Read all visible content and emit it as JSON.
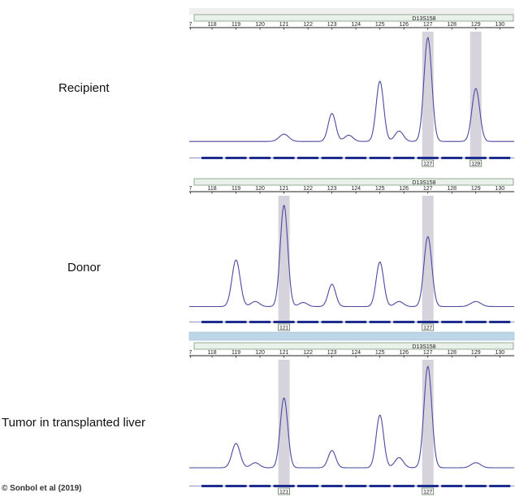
{
  "labels": {
    "recipient": "Recipient",
    "donor": "Donor",
    "tumor": "Tumor in transplanted liver"
  },
  "credit": "© Sonbol et al (2019)",
  "colors": {
    "trace": "#4a4aa0",
    "highlight": "#d7d3dd",
    "header_fill": "#eaf0ea",
    "header_border": "#7d9c7d",
    "bin_bar": "#1f2d8f",
    "separator": "#bcd6e8"
  },
  "chart_data": [
    {
      "type": "line",
      "name": "Recipient",
      "marker_label": "D13S158",
      "x_ticks": [
        "7",
        "118",
        "119",
        "120",
        "121",
        "122",
        "123",
        "124",
        "125",
        "126",
        "127",
        "128",
        "129",
        "130"
      ],
      "xlim": [
        117.05,
        130.6
      ],
      "allele_calls": [
        "127",
        "129"
      ],
      "peaks": [
        {
          "x": 121.0,
          "height": 0.07,
          "width": 0.28
        },
        {
          "x": 123.0,
          "height": 0.27,
          "width": 0.22
        },
        {
          "x": 123.7,
          "height": 0.06,
          "width": 0.25
        },
        {
          "x": 125.0,
          "height": 0.58,
          "width": 0.22
        },
        {
          "x": 125.8,
          "height": 0.1,
          "width": 0.25
        },
        {
          "x": 127.0,
          "height": 1.0,
          "width": 0.23
        },
        {
          "x": 129.0,
          "height": 0.51,
          "width": 0.23
        }
      ],
      "baseline": 0.03
    },
    {
      "type": "line",
      "name": "Donor",
      "marker_label": "D13S158",
      "x_ticks": [
        "7",
        "118",
        "119",
        "120",
        "121",
        "122",
        "123",
        "124",
        "125",
        "126",
        "127",
        "128",
        "129",
        "130"
      ],
      "xlim": [
        117.05,
        130.6
      ],
      "allele_calls": [
        "121",
        "127"
      ],
      "peaks": [
        {
          "x": 119.0,
          "height": 0.46,
          "width": 0.24
        },
        {
          "x": 119.8,
          "height": 0.05,
          "width": 0.25
        },
        {
          "x": 121.0,
          "height": 1.0,
          "width": 0.22
        },
        {
          "x": 121.8,
          "height": 0.04,
          "width": 0.25
        },
        {
          "x": 123.0,
          "height": 0.22,
          "width": 0.22
        },
        {
          "x": 125.0,
          "height": 0.44,
          "width": 0.22
        },
        {
          "x": 125.8,
          "height": 0.05,
          "width": 0.25
        },
        {
          "x": 127.0,
          "height": 0.69,
          "width": 0.23
        },
        {
          "x": 129.0,
          "height": 0.05,
          "width": 0.3
        }
      ],
      "baseline": 0.02
    },
    {
      "type": "line",
      "name": "Tumor in transplanted liver",
      "marker_label": "D13S158",
      "x_ticks": [
        "7",
        "118",
        "119",
        "120",
        "121",
        "122",
        "123",
        "124",
        "125",
        "126",
        "127",
        "128",
        "129",
        "130"
      ],
      "xlim": [
        117.05,
        130.6
      ],
      "allele_calls": [
        "121",
        "127"
      ],
      "peaks": [
        {
          "x": 119.0,
          "height": 0.24,
          "width": 0.24
        },
        {
          "x": 119.8,
          "height": 0.05,
          "width": 0.25
        },
        {
          "x": 121.0,
          "height": 0.69,
          "width": 0.22
        },
        {
          "x": 123.0,
          "height": 0.17,
          "width": 0.22
        },
        {
          "x": 125.0,
          "height": 0.52,
          "width": 0.22
        },
        {
          "x": 125.8,
          "height": 0.1,
          "width": 0.25
        },
        {
          "x": 127.0,
          "height": 1.0,
          "width": 0.23
        },
        {
          "x": 129.0,
          "height": 0.05,
          "width": 0.28
        }
      ],
      "baseline": 0.04
    }
  ]
}
